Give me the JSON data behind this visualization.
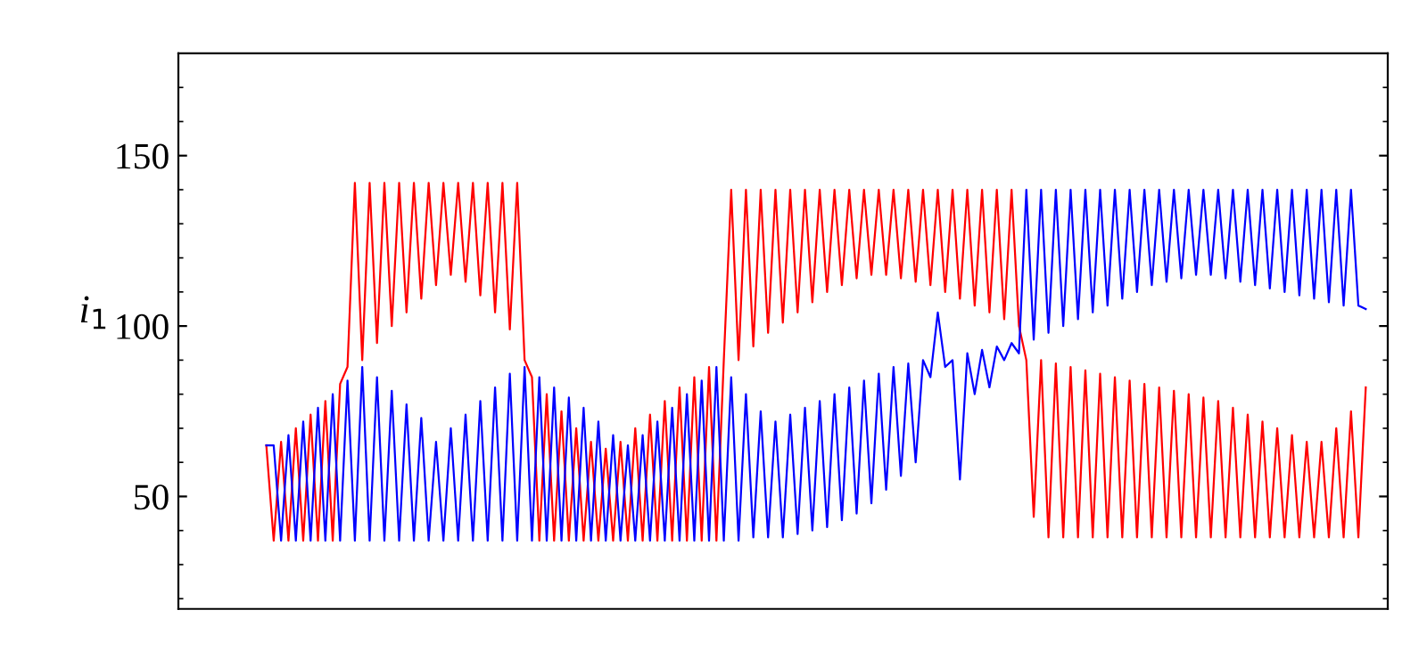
{
  "chart_data": {
    "type": "line",
    "ylabel": "i$_{1}$",
    "ylim": [
      17,
      180
    ],
    "yticks": [
      50,
      100,
      150
    ],
    "grid": false,
    "legend": false,
    "marker": "none",
    "line_style": "solid",
    "tick_labels": "y",
    "categories": [
      null,
      null,
      null,
      null,
      null,
      null,
      null,
      null,
      null,
      null,
      null,
      null,
      null,
      null,
      null,
      null,
      null,
      null,
      null,
      null,
      null,
      null,
      null,
      null,
      null,
      null,
      null,
      null,
      null,
      null,
      null,
      null,
      null,
      null,
      null,
      null,
      null,
      null,
      null,
      null,
      null,
      null,
      null,
      null,
      null,
      null,
      null,
      null,
      null,
      null,
      null,
      null,
      null,
      null,
      null,
      null,
      null,
      null,
      null,
      null,
      null,
      null,
      null,
      null,
      null,
      null,
      null,
      null,
      null,
      null,
      null,
      null,
      null,
      null,
      null,
      null,
      null,
      null,
      null,
      null,
      null,
      null,
      null,
      null,
      null,
      null,
      null,
      null,
      null,
      null,
      null,
      null,
      null,
      null,
      null,
      null,
      null,
      null,
      null,
      null,
      null,
      null,
      null,
      null,
      null,
      null,
      null,
      null,
      null,
      null,
      null,
      null,
      null,
      null,
      null,
      null,
      null,
      null,
      null,
      null,
      null,
      null,
      null,
      null,
      null,
      null,
      null,
      null,
      null,
      null,
      null,
      null,
      null,
      null,
      null,
      null,
      null,
      null,
      null,
      null,
      null,
      null,
      null,
      null,
      null,
      null,
      null,
      null,
      null,
      null
    ],
    "series": [
      {
        "color": "#ff0000",
        "values": [
          65,
          37,
          66,
          37,
          70,
          37,
          74,
          37,
          78,
          37,
          83,
          88,
          142,
          90,
          142,
          95,
          142,
          100,
          142,
          104,
          142,
          108,
          142,
          112,
          142,
          115,
          142,
          113,
          142,
          109,
          142,
          104,
          142,
          99,
          142,
          90,
          85,
          37,
          80,
          37,
          75,
          37,
          70,
          37,
          66,
          37,
          64,
          37,
          66,
          37,
          70,
          37,
          74,
          37,
          78,
          37,
          82,
          37,
          85,
          37,
          88,
          37,
          90,
          140,
          90,
          140,
          94,
          140,
          98,
          140,
          101,
          140,
          104,
          140,
          107,
          140,
          110,
          140,
          112,
          140,
          114,
          140,
          115,
          140,
          115,
          140,
          114,
          140,
          113,
          140,
          112,
          140,
          110,
          140,
          108,
          140,
          106,
          140,
          104,
          140,
          102,
          140,
          100,
          90,
          44,
          90,
          38,
          89,
          38,
          88,
          38,
          87,
          38,
          86,
          38,
          85,
          38,
          84,
          38,
          83,
          38,
          82,
          38,
          81,
          38,
          80,
          38,
          79,
          38,
          78,
          38,
          76,
          38,
          74,
          38,
          72,
          38,
          70,
          38,
          68,
          38,
          66,
          38,
          66,
          38,
          70,
          38,
          75,
          38,
          82
        ]
      },
      {
        "color": "#0000ff",
        "values": [
          65,
          65,
          37,
          68,
          37,
          72,
          37,
          76,
          37,
          80,
          37,
          84,
          37,
          88,
          37,
          85,
          37,
          81,
          37,
          77,
          37,
          73,
          37,
          66,
          37,
          70,
          37,
          74,
          37,
          78,
          37,
          82,
          37,
          86,
          37,
          88,
          37,
          85,
          37,
          82,
          37,
          79,
          37,
          76,
          37,
          72,
          37,
          68,
          37,
          65,
          37,
          68,
          37,
          72,
          37,
          76,
          37,
          80,
          37,
          84,
          37,
          88,
          37,
          85,
          37,
          80,
          38,
          75,
          38,
          72,
          38,
          74,
          39,
          76,
          40,
          78,
          41,
          80,
          43,
          82,
          45,
          84,
          48,
          86,
          52,
          88,
          56,
          89,
          60,
          90,
          85,
          104,
          88,
          90,
          55,
          92,
          80,
          93,
          82,
          94,
          90,
          95,
          92,
          140,
          96,
          140,
          98,
          140,
          100,
          140,
          102,
          140,
          104,
          140,
          106,
          140,
          108,
          140,
          110,
          140,
          112,
          140,
          113,
          140,
          114,
          140,
          115,
          140,
          115,
          140,
          114,
          140,
          113,
          140,
          112,
          140,
          111,
          140,
          110,
          140,
          109,
          140,
          108,
          140,
          107,
          140,
          106,
          140,
          106,
          105
        ]
      }
    ]
  }
}
